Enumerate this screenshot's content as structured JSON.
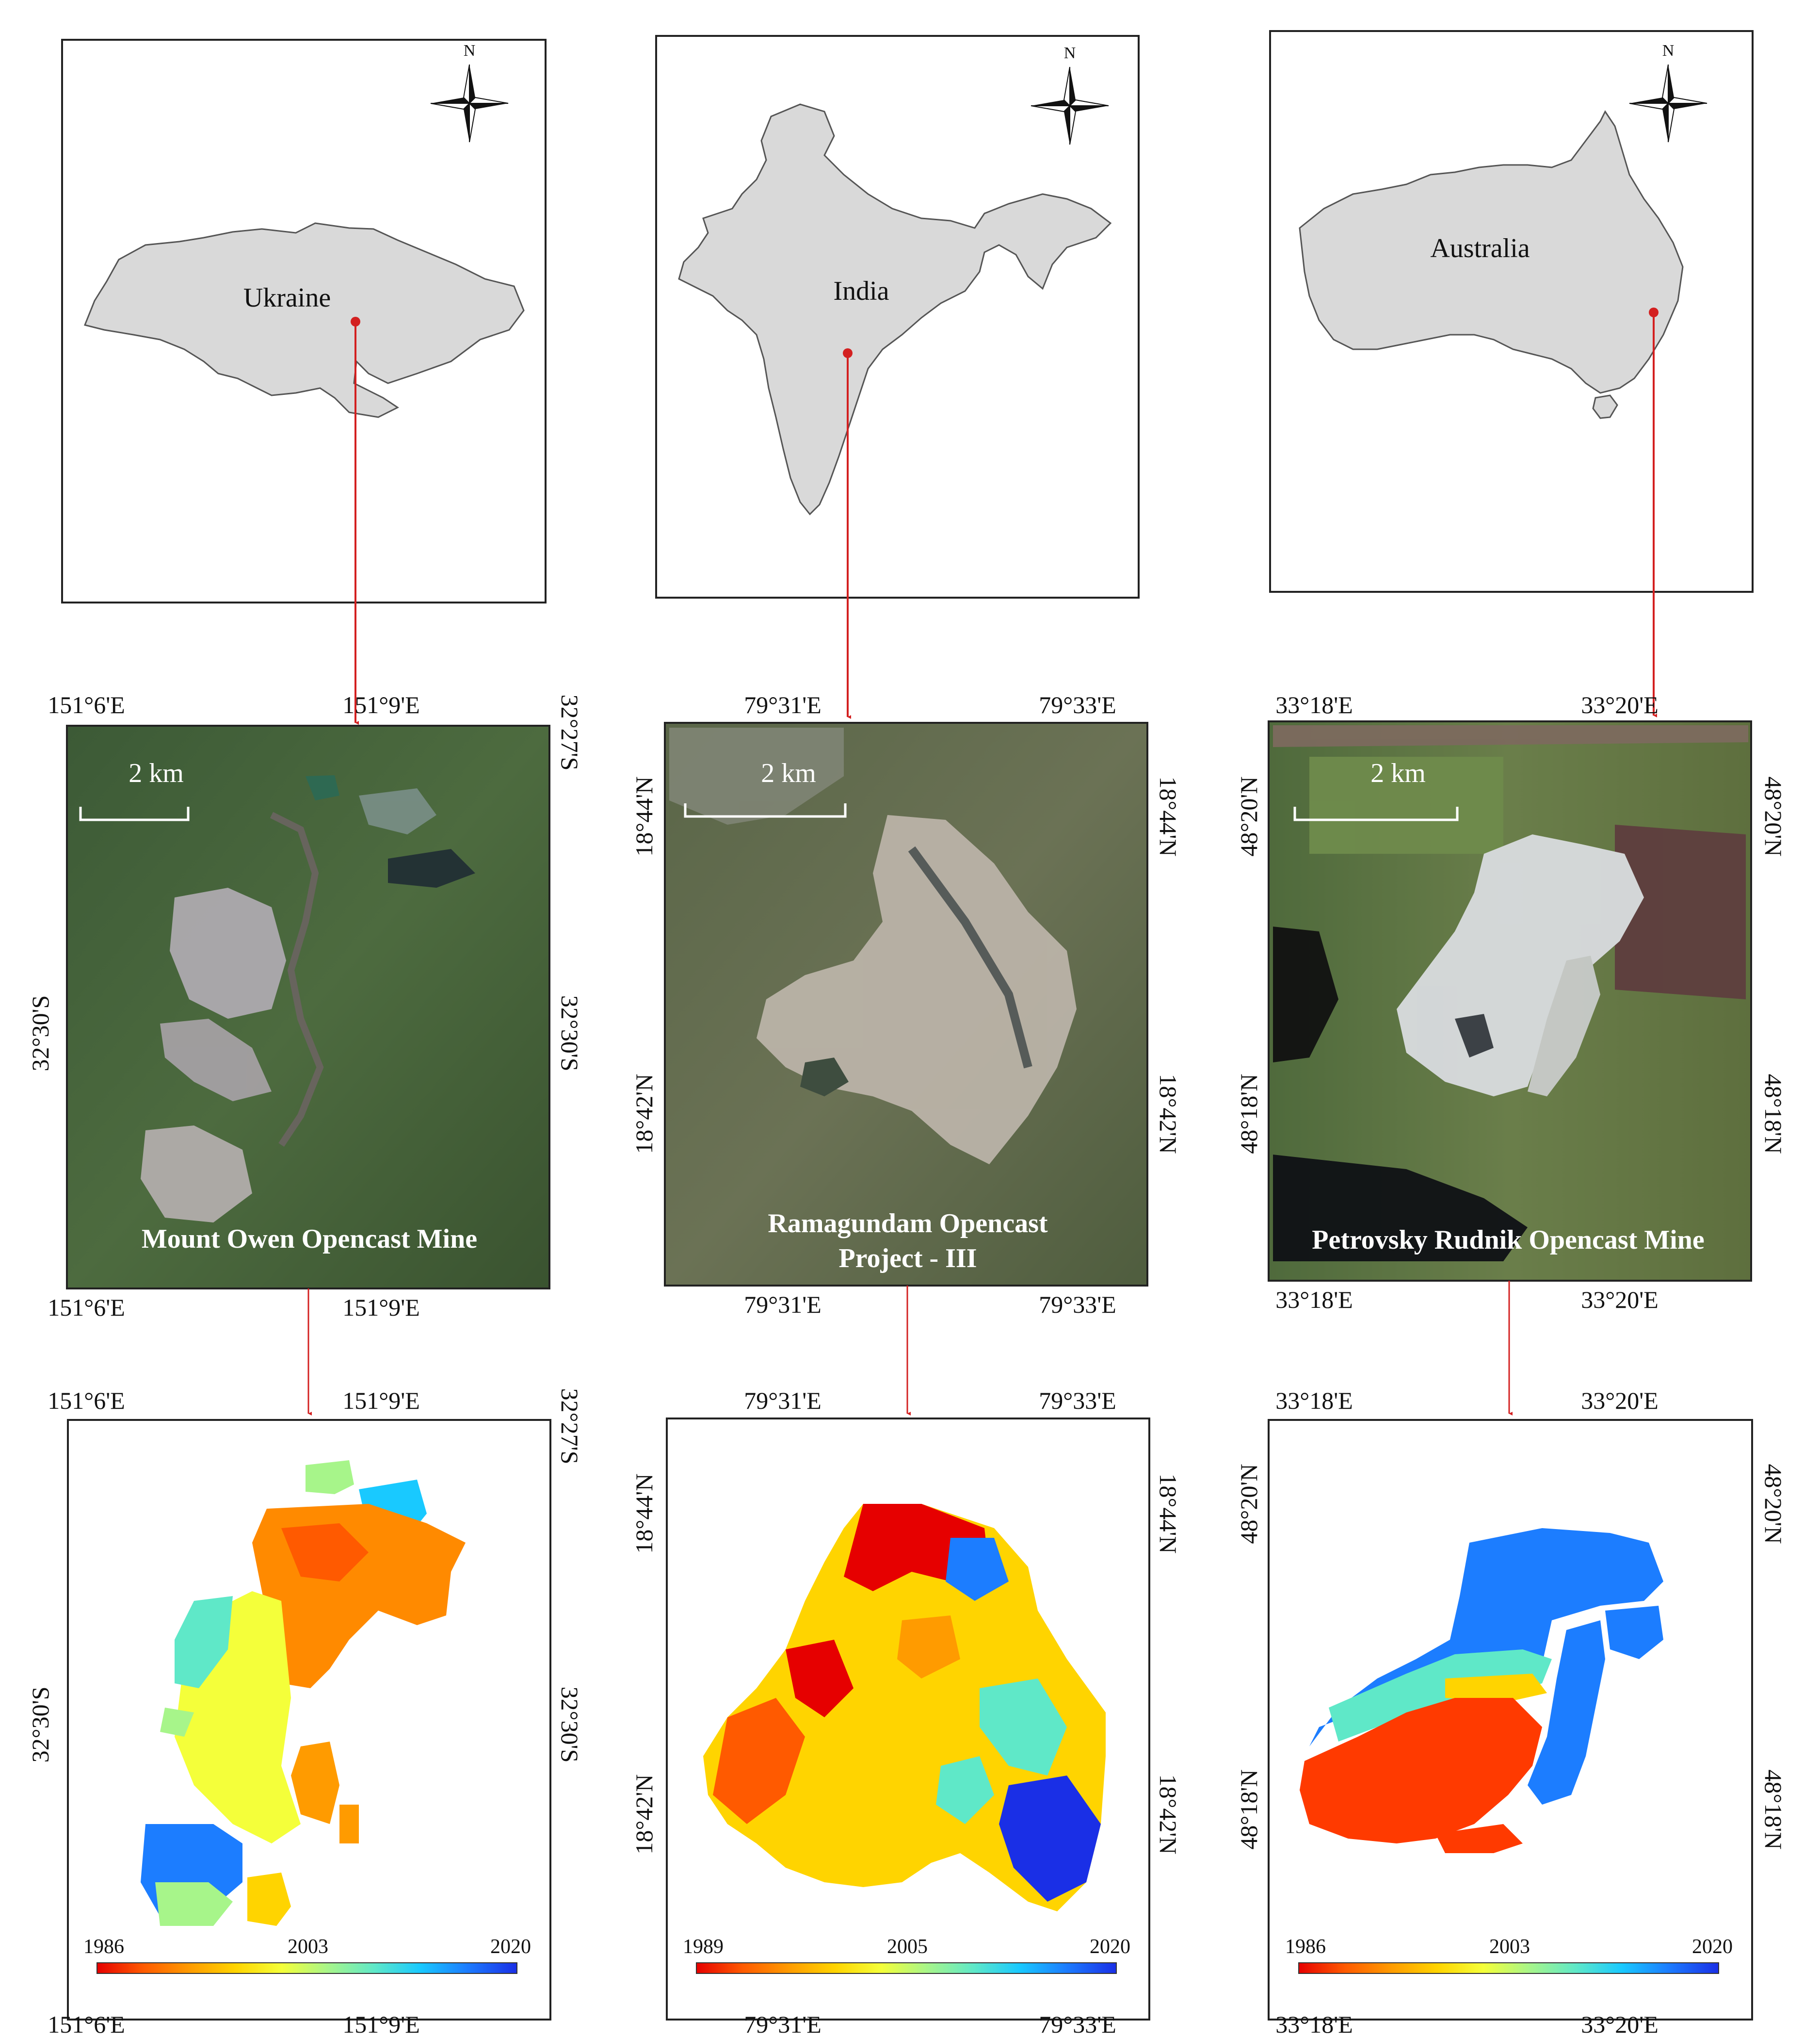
{
  "north_label": "N",
  "colors": {
    "arrow": "#d32020",
    "country_fill": "#d9d9d9",
    "country_stroke": "#555555",
    "frame": "#222222",
    "scalebar": "#ffffff"
  },
  "ramp": [
    "#e60000",
    "#ff5a00",
    "#ff9b00",
    "#ffd400",
    "#f4ff3a",
    "#a7f58a",
    "#5fe8c8",
    "#19c9ff",
    "#1c7dff",
    "#1a2fe6"
  ],
  "columns": [
    {
      "country": "Ukraine",
      "mine_title": [
        "Mount Owen Opencast Mine"
      ],
      "scale": "2 km",
      "coords": {
        "top_left": "151°6'E",
        "top_right": "151°9'E",
        "left_top": "",
        "left_mid": "32°30'S",
        "right_top": "32°27'S",
        "right_mid": "32°30'S",
        "bottom_left": "151°6'E",
        "bottom_right": "151°9'E"
      },
      "colorbar": {
        "min": "1986",
        "mid": "2003",
        "max": "2020"
      }
    },
    {
      "country": "India",
      "mine_title": [
        "Ramagundam Opencast",
        "Project - III"
      ],
      "scale": "2 km",
      "coords": {
        "top_left": "79°31'E",
        "top_right": "79°33'E",
        "left_top": "18°44'N",
        "left_mid": "18°42'N",
        "right_top": "18°44'N",
        "right_mid": "18°42'N",
        "bottom_left": "79°31'E",
        "bottom_right": "79°33'E"
      },
      "colorbar": {
        "min": "1989",
        "mid": "2005",
        "max": "2020"
      }
    },
    {
      "country": "Australia",
      "mine_title": [
        "Petrovsky Rudnik Opencast Mine"
      ],
      "scale": "2 km",
      "coords": {
        "top_left": "33°18'E",
        "top_right": "33°20'E",
        "left_top": "48°20'N",
        "left_mid": "48°18'N",
        "right_top": "48°20'N",
        "right_mid": "48°18'N",
        "bottom_left": "33°18'E",
        "bottom_right": "33°20'E"
      },
      "colorbar": {
        "min": "1986",
        "mid": "2003",
        "max": "2020"
      }
    }
  ]
}
